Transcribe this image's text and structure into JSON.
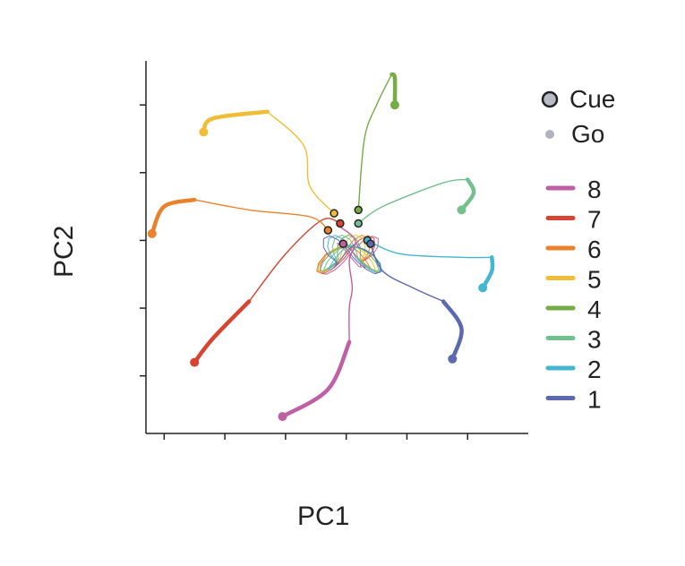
{
  "chart_data": {
    "type": "line",
    "xlabel": "PC1",
    "ylabel": "PC2",
    "xlim": [
      -3.3,
      3.0
    ],
    "ylim": [
      -2.85,
      2.65
    ],
    "xticks": [
      -3,
      -2,
      -1,
      0,
      1,
      2
    ],
    "yticks": [
      -2,
      -1,
      0,
      1,
      2
    ],
    "tick_labels_shown": false,
    "legend": {
      "markers": [
        {
          "label": "Cue",
          "style": "circle with dark outline"
        },
        {
          "label": "Go",
          "style": "small filled circle"
        }
      ],
      "series_order": [
        "8",
        "7",
        "6",
        "5",
        "4",
        "3",
        "2",
        "1"
      ],
      "placement": "right"
    },
    "series": [
      {
        "name": "8",
        "color": "#c060a4",
        "path": [
          [
            -0.1,
            0.2
          ],
          [
            0.15,
            0.0
          ],
          [
            0.05,
            -0.3
          ],
          [
            0.1,
            -0.7
          ],
          [
            0.05,
            -1.0
          ],
          [
            0.05,
            -1.5
          ],
          [
            -0.3,
            -2.2
          ],
          [
            -1.05,
            -2.6
          ]
        ],
        "cue": [
          -0.05,
          -0.05
        ],
        "go_end": [
          -1.05,
          -2.6
        ]
      },
      {
        "name": "7",
        "color": "#d84432",
        "path": [
          [
            -0.1,
            0.25
          ],
          [
            -0.4,
            0.3
          ],
          [
            -1.0,
            -0.2
          ],
          [
            -1.6,
            -0.9
          ],
          [
            -2.2,
            -1.45
          ],
          [
            -2.5,
            -1.8
          ]
        ],
        "cue": [
          -0.1,
          0.25
        ],
        "go_end": [
          -2.5,
          -1.8
        ]
      },
      {
        "name": "6",
        "color": "#e8822d",
        "path": [
          [
            -0.3,
            0.15
          ],
          [
            -0.6,
            0.35
          ],
          [
            -1.6,
            0.45
          ],
          [
            -2.5,
            0.6
          ],
          [
            -3.0,
            0.5
          ],
          [
            -3.2,
            0.1
          ]
        ],
        "cue": [
          -0.3,
          0.15
        ],
        "go_end": [
          -3.2,
          0.1
        ]
      },
      {
        "name": "5",
        "color": "#f0be36",
        "path": [
          [
            -0.2,
            0.4
          ],
          [
            -0.6,
            0.8
          ],
          [
            -0.7,
            1.4
          ],
          [
            -1.3,
            1.9
          ],
          [
            -2.2,
            1.8
          ],
          [
            -2.35,
            1.6
          ]
        ],
        "cue": [
          -0.2,
          0.4
        ],
        "go_end": [
          -2.35,
          1.6
        ]
      },
      {
        "name": "4",
        "color": "#76ac43",
        "path": [
          [
            0.2,
            0.45
          ],
          [
            0.3,
            1.5
          ],
          [
            0.5,
            2.0
          ],
          [
            0.75,
            2.45
          ],
          [
            0.8,
            2.4
          ],
          [
            0.8,
            2.0
          ]
        ],
        "cue": [
          0.2,
          0.45
        ],
        "go_end": [
          0.8,
          2.0
        ]
      },
      {
        "name": "3",
        "color": "#72c08e",
        "path": [
          [
            0.2,
            0.25
          ],
          [
            0.6,
            0.5
          ],
          [
            1.6,
            0.85
          ],
          [
            2.0,
            0.9
          ],
          [
            2.1,
            0.7
          ],
          [
            1.9,
            0.45
          ]
        ],
        "cue": [
          0.2,
          0.25
        ],
        "go_end": [
          1.9,
          0.45
        ]
      },
      {
        "name": "2",
        "color": "#45b6d2",
        "path": [
          [
            0.35,
            0.0
          ],
          [
            0.9,
            -0.2
          ],
          [
            1.9,
            -0.25
          ],
          [
            2.4,
            -0.25
          ],
          [
            2.4,
            -0.45
          ],
          [
            2.25,
            -0.7
          ]
        ],
        "cue": [
          0.35,
          0.0
        ],
        "go_end": [
          2.25,
          -0.7
        ]
      },
      {
        "name": "1",
        "color": "#5a69b0",
        "path": [
          [
            0.4,
            -0.05
          ],
          [
            0.6,
            -0.45
          ],
          [
            1.1,
            -0.7
          ],
          [
            1.6,
            -0.9
          ],
          [
            1.9,
            -1.3
          ],
          [
            1.75,
            -1.75
          ]
        ],
        "cue": [
          0.4,
          -0.05
        ],
        "go_end": [
          1.75,
          -1.75
        ]
      }
    ]
  }
}
